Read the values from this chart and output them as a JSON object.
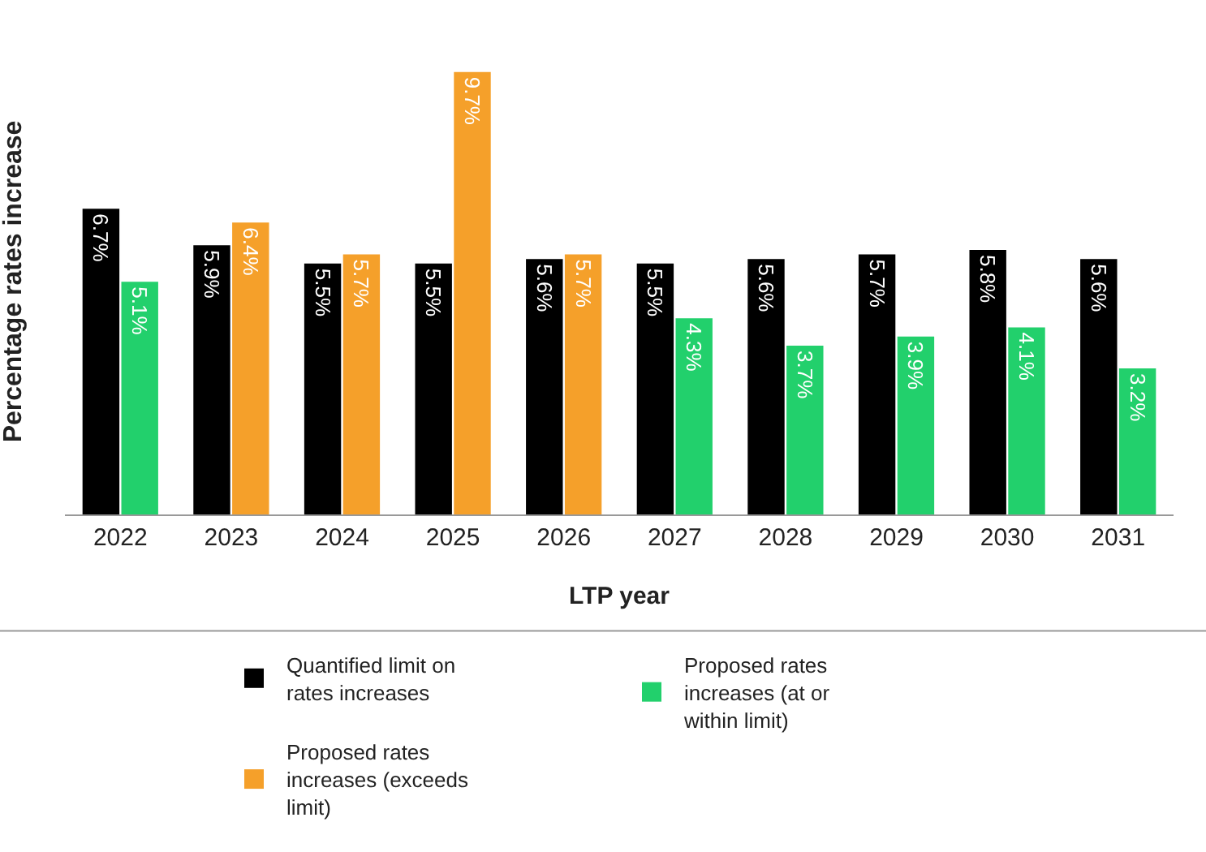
{
  "chart_data": {
    "type": "bar",
    "xlabel": "LTP year",
    "ylabel": "Percentage rates increase",
    "categories": [
      "2022",
      "2023",
      "2024",
      "2025",
      "2026",
      "2027",
      "2028",
      "2029",
      "2030",
      "2031"
    ],
    "series": [
      {
        "name": "Quantified limit on rates increases",
        "color": "#000000",
        "values": [
          6.7,
          5.9,
          5.5,
          5.5,
          5.6,
          5.5,
          5.6,
          5.7,
          5.8,
          5.6
        ],
        "value_labels": [
          "6.7%",
          "5.9%",
          "5.5%",
          "5.5%",
          "5.6%",
          "5.5%",
          "5.6%",
          "5.7%",
          "5.8%",
          "5.6%"
        ]
      },
      {
        "name": "Proposed rates increases (at or within limit)",
        "color": "#22d06c",
        "values": [
          5.1,
          null,
          null,
          null,
          null,
          4.3,
          3.7,
          3.9,
          4.1,
          3.2
        ],
        "value_labels": [
          "5.1%",
          null,
          null,
          null,
          null,
          "4.3%",
          "3.7%",
          "3.9%",
          "4.1%",
          "3.2%"
        ]
      },
      {
        "name": "Proposed rates increases (exceeds limit)",
        "color": "#f5a02a",
        "values": [
          null,
          6.4,
          5.7,
          9.7,
          5.7,
          null,
          null,
          null,
          null,
          null
        ],
        "value_labels": [
          null,
          "6.4%",
          "5.7%",
          "9.7%",
          "5.7%",
          null,
          null,
          null,
          null,
          null
        ]
      }
    ],
    "grid": false,
    "legend": "bottom"
  }
}
